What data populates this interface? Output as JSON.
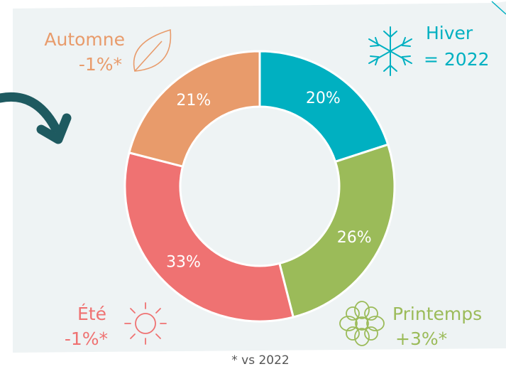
{
  "chart_data": {
    "type": "donut",
    "categories": [
      "Hiver",
      "Printemps",
      "Été",
      "Automne"
    ],
    "values": [
      20,
      26,
      33,
      21
    ],
    "value_labels": [
      "20%",
      "26%",
      "33%",
      "21%"
    ],
    "colors": [
      "#00b0c1",
      "#9bbb59",
      "#ef7272",
      "#e89b6b"
    ],
    "changes": [
      "= 2022",
      "+3%*",
      "-1%*",
      "-1%*"
    ],
    "footnote": "* vs 2022"
  }
}
